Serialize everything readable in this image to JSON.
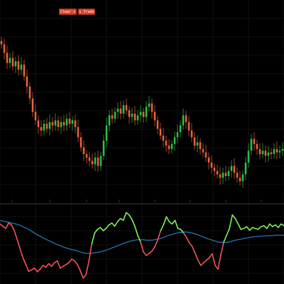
{
  "toolbar": {
    "buttons": [
      {
        "label": "Clear",
        "icon": "close-icon"
      },
      {
        "label": "Trade",
        "icon": "trade-icon"
      }
    ]
  },
  "colors": {
    "background": "#000000",
    "grid": "#1f1f1f",
    "up_candle": "#2fbf4a",
    "down_candle": "#e8643c",
    "osc_bull": "#7cf25a",
    "osc_bear": "#f2545b",
    "osc_signal": "#1f6fa6",
    "axis_text": "#7f8fa0",
    "button": "#d9432b"
  },
  "chart_data": [
    {
      "type": "candlestick",
      "title": "",
      "xlabel": "",
      "ylabel": "",
      "grid": true,
      "x_tick_labels": [
        "",
        "",
        "",
        "",
        "",
        "",
        "",
        ""
      ],
      "close": [
        8.1,
        7.6,
        7.0,
        7.3,
        6.8,
        7.1,
        6.6,
        6.9,
        6.2,
        5.6,
        4.9,
        4.1,
        3.6,
        3.2,
        3.0,
        3.4,
        3.1,
        3.5,
        3.3,
        3.6,
        3.2,
        3.5,
        3.3,
        3.7,
        3.4,
        3.6,
        3.2,
        2.6,
        2.0,
        1.6,
        1.4,
        1.2,
        1.0,
        1.4,
        0.9,
        1.5,
        2.4,
        3.3,
        3.9,
        3.7,
        4.1,
        4.3,
        4.0,
        4.5,
        4.2,
        3.8,
        4.0,
        3.6,
        3.9,
        4.1,
        3.8,
        4.4,
        4.6,
        4.1,
        3.6,
        3.1,
        2.7,
        2.4,
        2.1,
        1.9,
        2.2,
        2.6,
        2.9,
        3.3,
        3.9,
        3.5,
        3.0,
        2.6,
        2.1,
        2.3,
        1.9,
        1.7,
        1.4,
        1.1,
        0.8,
        0.6,
        0.4,
        0.2,
        0.5,
        0.3,
        0.6,
        0.9,
        0.5,
        0.2,
        0.0,
        0.4,
        1.1,
        1.8,
        2.5,
        2.2,
        1.9,
        1.6,
        1.8,
        1.5,
        1.7,
        1.6,
        1.9,
        1.7,
        1.8,
        1.9
      ],
      "ylim": [
        -0.5,
        8.5
      ]
    },
    {
      "type": "line",
      "series": [
        {
          "role": "oscillator",
          "values": [
            0.2,
            0.15,
            0.1,
            0.22,
            0.18,
            0.05,
            -0.15,
            -0.35,
            -0.55,
            -0.7,
            -0.85,
            -0.82,
            -0.78,
            -0.86,
            -0.8,
            -0.72,
            -0.76,
            -0.68,
            -0.74,
            -0.66,
            -0.62,
            -0.78,
            -0.74,
            -0.7,
            -0.66,
            -0.58,
            -0.62,
            -0.7,
            -0.84,
            -1.0,
            -0.92,
            -0.62,
            -0.24,
            0.0,
            0.08,
            0.12,
            0.05,
            0.1,
            0.18,
            0.22,
            0.15,
            0.25,
            0.32,
            0.28,
            0.45,
            0.4,
            0.3,
            0.15,
            -0.05,
            -0.2,
            -0.42,
            -0.5,
            -0.45,
            -0.4,
            -0.3,
            -0.15,
            0.05,
            0.18,
            0.36,
            0.25,
            0.2,
            0.28,
            0.1,
            0.08,
            0.0,
            -0.1,
            -0.22,
            -0.3,
            -0.45,
            -0.6,
            -0.72,
            -0.66,
            -0.6,
            -0.55,
            -0.46,
            -0.72,
            -0.8,
            -0.48,
            -0.2,
            -0.05,
            0.1,
            0.4,
            0.32,
            0.2,
            0.08,
            0.1,
            0.14,
            0.06,
            0.12,
            0.1,
            0.08,
            0.14,
            0.16,
            0.1,
            0.2,
            0.14,
            0.18,
            0.12,
            0.2,
            0.16
          ]
        },
        {
          "role": "signal",
          "values": [
            0.28,
            0.26,
            0.25,
            0.24,
            0.22,
            0.21,
            0.19,
            0.17,
            0.14,
            0.11,
            0.08,
            0.04,
            0.0,
            -0.04,
            -0.07,
            -0.11,
            -0.14,
            -0.17,
            -0.2,
            -0.23,
            -0.26,
            -0.28,
            -0.31,
            -0.33,
            -0.35,
            -0.37,
            -0.38,
            -0.4,
            -0.42,
            -0.44,
            -0.45,
            -0.45,
            -0.45,
            -0.44,
            -0.43,
            -0.42,
            -0.4,
            -0.38,
            -0.36,
            -0.33,
            -0.31,
            -0.28,
            -0.26,
            -0.23,
            -0.21,
            -0.19,
            -0.17,
            -0.16,
            -0.15,
            -0.15,
            -0.15,
            -0.16,
            -0.16,
            -0.16,
            -0.15,
            -0.14,
            -0.12,
            -0.1,
            -0.07,
            -0.05,
            -0.03,
            -0.01,
            0.0,
            0.01,
            0.02,
            0.02,
            0.01,
            0.0,
            -0.02,
            -0.04,
            -0.07,
            -0.09,
            -0.12,
            -0.14,
            -0.16,
            -0.18,
            -0.2,
            -0.21,
            -0.21,
            -0.21,
            -0.2,
            -0.18,
            -0.16,
            -0.15,
            -0.14,
            -0.12,
            -0.11,
            -0.1,
            -0.09,
            -0.08,
            -0.08,
            -0.07,
            -0.07,
            -0.06,
            -0.06,
            -0.06,
            -0.05,
            -0.05,
            -0.05,
            -0.05
          ]
        }
      ],
      "ylim": [
        -1.1,
        0.6
      ]
    }
  ]
}
